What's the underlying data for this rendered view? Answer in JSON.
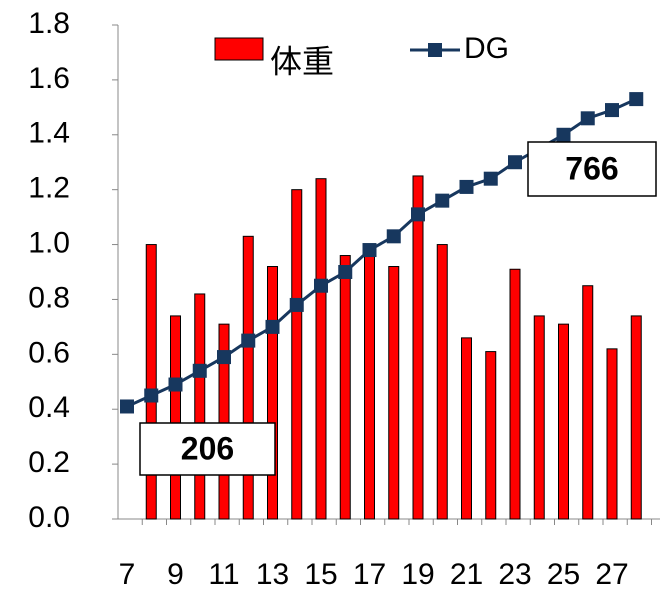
{
  "chart_data": {
    "type": "bar-line",
    "categories": [
      "7",
      null,
      "9",
      null,
      "11",
      null,
      "13",
      null,
      "15",
      null,
      "17",
      null,
      "19",
      null,
      "21",
      null,
      "23",
      null,
      "25",
      null,
      "27",
      null
    ],
    "series": [
      {
        "name": "体重",
        "type": "bar",
        "color": "#ff0000",
        "values": [
          null,
          1.0,
          0.74,
          0.82,
          0.71,
          1.03,
          0.92,
          1.2,
          1.24,
          0.96,
          0.98,
          0.92,
          1.25,
          1.0,
          0.66,
          0.61,
          0.91,
          0.74,
          0.71,
          0.85,
          0.62,
          0.74
        ]
      },
      {
        "name": "DG",
        "type": "line",
        "color": "#17375e",
        "values": [
          0.41,
          0.45,
          0.49,
          0.54,
          0.59,
          0.65,
          0.7,
          0.78,
          0.85,
          0.9,
          0.98,
          1.03,
          1.11,
          1.16,
          1.21,
          1.24,
          1.3,
          1.35,
          1.4,
          1.46,
          1.49,
          1.53
        ]
      }
    ],
    "ylim": [
      0,
      1.8
    ],
    "yticks": [
      {
        "value": 0,
        "label": "0.0"
      },
      0.2,
      0.4,
      0.6,
      0.8,
      {
        "value": 1,
        "label": "1.0"
      },
      1.2,
      1.4,
      1.6,
      1.8
    ],
    "annotations": [
      {
        "text": "206"
      },
      {
        "text": "766"
      }
    ],
    "legend": "top"
  }
}
